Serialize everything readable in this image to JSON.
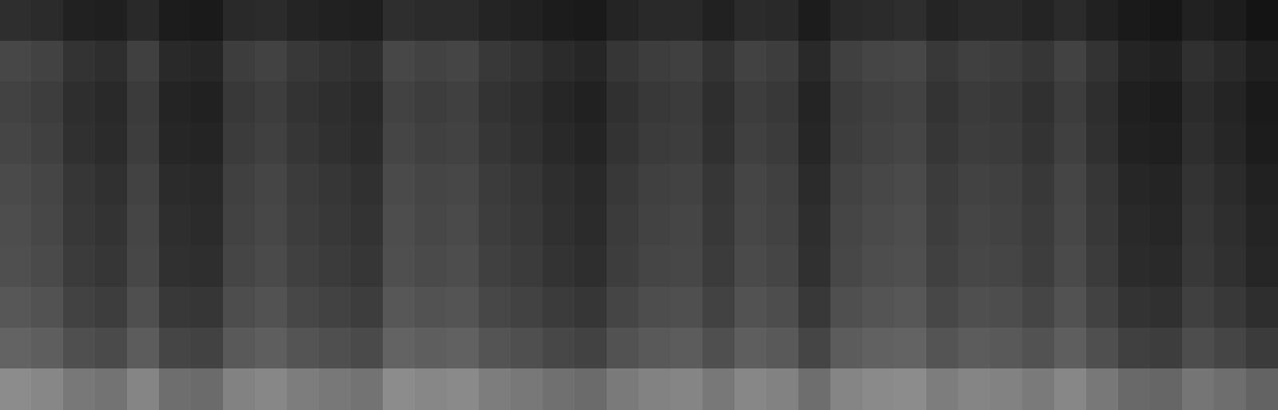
{
  "chart_data": {
    "type": "heatmap",
    "values": [
      [
        18,
        17,
        13,
        12,
        16,
        11,
        10,
        16,
        17,
        14,
        13,
        12,
        18,
        17,
        17,
        14,
        13,
        11,
        10,
        14,
        16,
        16,
        13,
        17,
        16,
        11,
        16,
        17,
        18,
        14,
        16,
        16,
        14,
        17,
        13,
        10,
        9,
        13,
        11,
        8
      ],
      [
        28,
        26,
        20,
        18,
        25,
        16,
        15,
        24,
        26,
        22,
        20,
        18,
        28,
        26,
        27,
        22,
        20,
        17,
        15,
        21,
        24,
        25,
        20,
        26,
        24,
        16,
        25,
        27,
        28,
        22,
        25,
        24,
        21,
        26,
        20,
        14,
        13,
        19,
        16,
        12
      ],
      [
        26,
        24,
        18,
        16,
        23,
        14,
        13,
        22,
        24,
        20,
        18,
        16,
        26,
        24,
        25,
        20,
        18,
        15,
        13,
        19,
        22,
        23,
        18,
        24,
        22,
        14,
        23,
        25,
        26,
        20,
        23,
        22,
        19,
        24,
        18,
        12,
        11,
        17,
        14,
        10
      ],
      [
        27,
        25,
        19,
        17,
        24,
        15,
        14,
        23,
        25,
        21,
        19,
        17,
        27,
        25,
        26,
        21,
        19,
        16,
        14,
        20,
        23,
        24,
        19,
        25,
        23,
        15,
        24,
        26,
        27,
        21,
        24,
        23,
        20,
        25,
        19,
        13,
        12,
        18,
        15,
        11
      ],
      [
        29,
        27,
        21,
        19,
        26,
        17,
        16,
        25,
        27,
        23,
        21,
        19,
        29,
        27,
        28,
        23,
        21,
        18,
        16,
        22,
        25,
        26,
        21,
        27,
        25,
        17,
        26,
        28,
        29,
        23,
        26,
        25,
        22,
        27,
        21,
        15,
        14,
        20,
        17,
        13
      ],
      [
        30,
        28,
        22,
        20,
        27,
        18,
        17,
        26,
        28,
        24,
        22,
        20,
        30,
        28,
        29,
        24,
        22,
        19,
        17,
        23,
        26,
        27,
        22,
        28,
        26,
        18,
        27,
        29,
        30,
        24,
        27,
        26,
        23,
        28,
        22,
        16,
        15,
        21,
        18,
        14
      ],
      [
        31,
        29,
        23,
        21,
        28,
        19,
        18,
        27,
        29,
        25,
        23,
        21,
        31,
        29,
        30,
        25,
        23,
        20,
        18,
        24,
        27,
        28,
        23,
        29,
        27,
        19,
        28,
        30,
        31,
        25,
        28,
        27,
        24,
        29,
        23,
        17,
        16,
        22,
        19,
        15
      ],
      [
        34,
        32,
        26,
        24,
        31,
        22,
        21,
        30,
        32,
        28,
        26,
        24,
        34,
        32,
        33,
        28,
        26,
        23,
        21,
        27,
        30,
        31,
        26,
        32,
        30,
        22,
        31,
        33,
        34,
        28,
        31,
        30,
        27,
        32,
        26,
        20,
        19,
        25,
        22,
        18
      ],
      [
        39,
        37,
        31,
        29,
        36,
        27,
        26,
        35,
        37,
        33,
        31,
        29,
        39,
        37,
        38,
        33,
        31,
        28,
        26,
        32,
        35,
        36,
        31,
        37,
        35,
        27,
        36,
        38,
        39,
        33,
        36,
        35,
        32,
        37,
        31,
        25,
        24,
        30,
        27,
        23
      ],
      [
        55,
        53,
        47,
        45,
        52,
        43,
        42,
        51,
        53,
        49,
        47,
        45,
        55,
        53,
        54,
        49,
        47,
        44,
        42,
        48,
        51,
        52,
        47,
        53,
        51,
        43,
        52,
        54,
        55,
        49,
        52,
        51,
        48,
        53,
        47,
        41,
        40,
        46,
        43,
        39
      ]
    ],
    "zlim": [
      0,
      100
    ],
    "tick_labels": false,
    "grid": false
  }
}
